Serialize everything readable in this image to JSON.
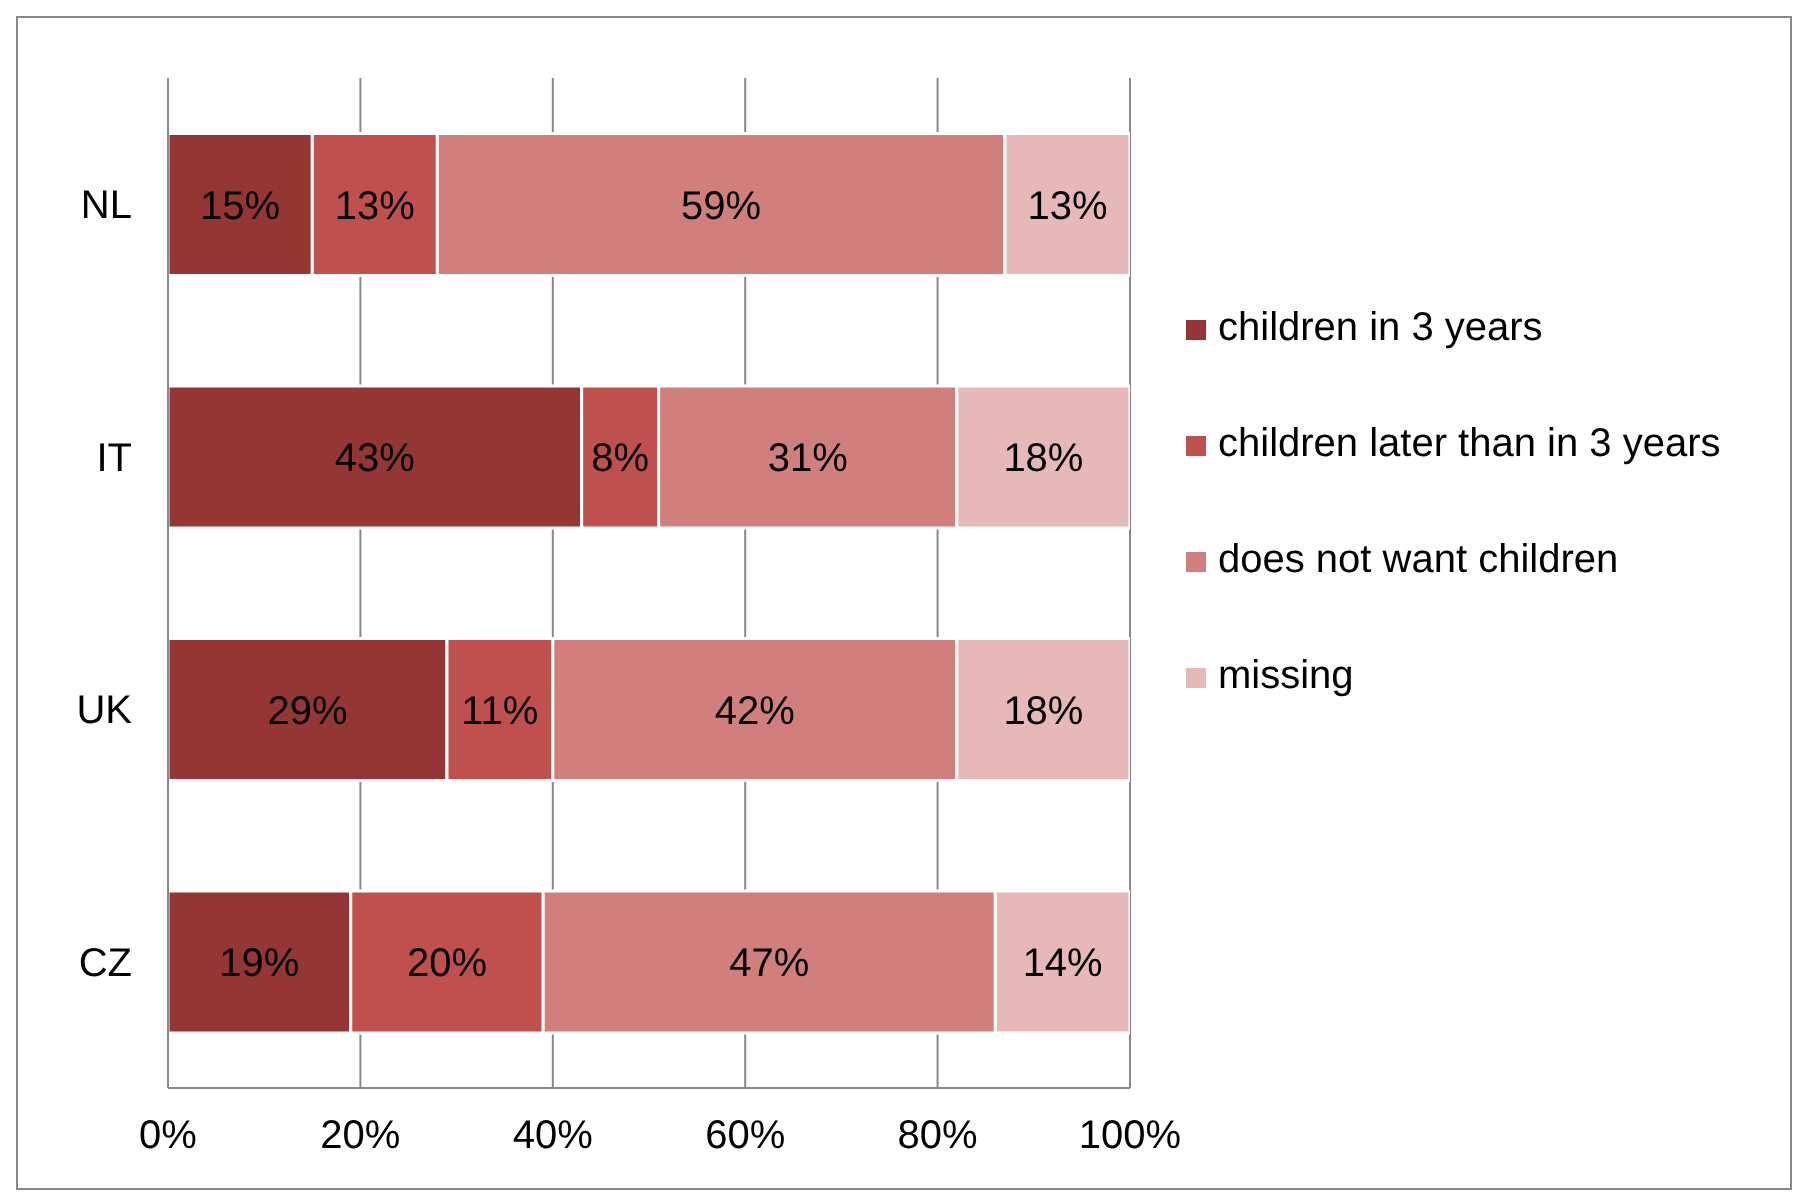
{
  "chart_data": {
    "type": "bar",
    "orientation": "horizontal",
    "stacked": true,
    "categories": [
      "NL",
      "IT",
      "UK",
      "CZ"
    ],
    "series": [
      {
        "name": "children in 3 years",
        "color": "#943634",
        "values": [
          15,
          43,
          29,
          19
        ],
        "value_labels": [
          "15%",
          "43%",
          "29%",
          "19%"
        ]
      },
      {
        "name": "children later than in 3 years",
        "color": "#c0504d",
        "values": [
          13,
          8,
          11,
          20
        ],
        "value_labels": [
          "13%",
          "8%",
          "11%",
          "20%"
        ]
      },
      {
        "name": "does not want children",
        "color": "#d07f7d",
        "values": [
          59,
          31,
          42,
          47
        ],
        "value_labels": [
          "59%",
          "31%",
          "42%",
          "47%"
        ]
      },
      {
        "name": "missing",
        "color": "#e6b9b8",
        "values": [
          13,
          18,
          18,
          14
        ],
        "value_labels": [
          "13%",
          "18%",
          "18%",
          "14%"
        ]
      }
    ],
    "xlim": [
      0,
      100
    ],
    "xticks": [
      {
        "value": 0,
        "label": "0%"
      },
      {
        "value": 20,
        "label": "20%"
      },
      {
        "value": 40,
        "label": "40%"
      },
      {
        "value": 60,
        "label": "60%"
      },
      {
        "value": 80,
        "label": "80%"
      },
      {
        "value": 100,
        "label": "100%"
      }
    ],
    "grid": "x",
    "legend": "right"
  }
}
